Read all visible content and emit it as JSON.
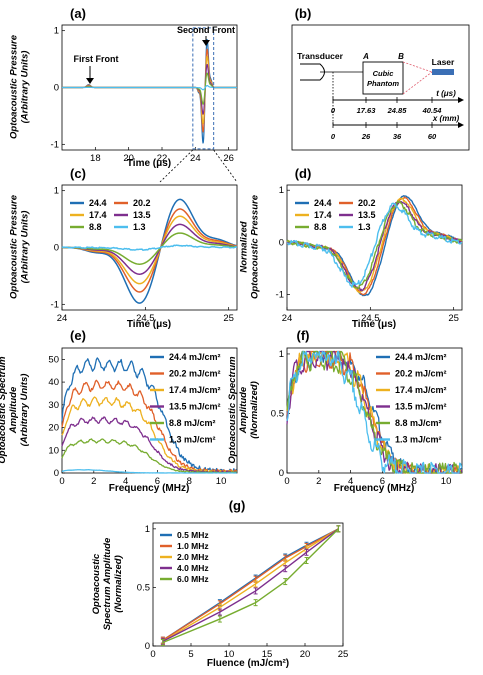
{
  "colors": [
    "#1f6fb4",
    "#e0602a",
    "#edb120",
    "#7e2f8e",
    "#77ac30",
    "#4dbeee"
  ],
  "panel_labels": [
    "(a)",
    "(b)",
    "(c)",
    "(d)",
    "(e)",
    "(f)",
    "(g)"
  ],
  "fluence_labels": [
    "24.4",
    "20.2",
    "17.4",
    "13.5",
    "8.8",
    "1.3"
  ],
  "fluence_labels_units": [
    "24.4 mJ/cm²",
    "20.2 mJ/cm²",
    "17.4 mJ/cm²",
    "13.5 mJ/cm²",
    "8.8 mJ/cm²",
    "1.3 mJ/cm²"
  ],
  "chart_data": [
    {
      "id": "a",
      "type": "line",
      "ylabel_top": "Optoacoustic Pressure",
      "ylabel_bottom": "(Arbitrary Units)",
      "xlabel": "Time (μs)",
      "xlim": [
        16,
        26.5
      ],
      "ylim": [
        -1.1,
        1.1
      ],
      "xticks": [
        18,
        20,
        22,
        24,
        26
      ],
      "yticks": [
        -1,
        0,
        1
      ],
      "annotations": [
        "First Front",
        "Second Front"
      ]
    },
    {
      "id": "b",
      "type": "diagram",
      "labels": {
        "transducer": "Transducer",
        "phantom_line1": "Cubic",
        "phantom_line2": "Phantom",
        "laser": "Laser",
        "a": "A",
        "b": "B",
        "t_axis": "t (μs)",
        "x_axis": "x (mm)"
      },
      "t_ticks": [
        "0",
        "17.63",
        "24.85",
        "40.54"
      ],
      "x_ticks": [
        "0",
        "26",
        "36",
        "60"
      ]
    },
    {
      "id": "c",
      "type": "line",
      "ylabel_top": "Optoacoustic Pressure",
      "ylabel_bottom": "(Arbitrary Units)",
      "xlabel": "Time (μs)",
      "xlim": [
        24,
        25.05
      ],
      "ylim": [
        -1.1,
        1.1
      ],
      "xticks": [
        24,
        24.5,
        25
      ],
      "yticks": [
        -1,
        0,
        1
      ],
      "series": [
        {
          "name": "24.4",
          "scale": 1.0
        },
        {
          "name": "20.2",
          "scale": 0.8
        },
        {
          "name": "17.4",
          "scale": 0.65
        },
        {
          "name": "13.5",
          "scale": 0.48
        },
        {
          "name": "8.8",
          "scale": 0.3
        },
        {
          "name": "1.3",
          "scale": 0.04
        }
      ]
    },
    {
      "id": "d",
      "type": "line",
      "ylabel_top": "Normalized",
      "ylabel_bottom": "Optoacoustic Pressure",
      "xlabel": "Time (μs)",
      "xlim": [
        24,
        25.05
      ],
      "ylim": [
        -1.3,
        1.1
      ],
      "xticks": [
        24,
        24.5,
        25
      ],
      "yticks": [
        -1,
        0,
        1
      ],
      "series": [
        {
          "name": "24.4",
          "shift": 0.0
        },
        {
          "name": "20.2",
          "shift": -0.01
        },
        {
          "name": "17.4",
          "shift": -0.02
        },
        {
          "name": "13.5",
          "shift": -0.03
        },
        {
          "name": "8.8",
          "shift": -0.04
        },
        {
          "name": "1.3",
          "shift": -0.06
        }
      ]
    },
    {
      "id": "e",
      "type": "line",
      "ylabel_top": "Optoacoustic Spectrum",
      "ylabel_mid": "Amplitude",
      "ylabel_bottom": "(Arbitrary Units)",
      "xlabel": "Frequency (MHz)",
      "xlim": [
        0,
        11
      ],
      "ylim": [
        0,
        55
      ],
      "xticks": [
        0,
        2,
        4,
        6,
        8,
        10
      ],
      "yticks": [
        0,
        10,
        20,
        30,
        40,
        50
      ],
      "series": [
        {
          "name": "24.4 mJ/cm²",
          "peak": 47,
          "cutoff": 7.3
        },
        {
          "name": "20.2 mJ/cm²",
          "peak": 38,
          "cutoff": 7.0
        },
        {
          "name": "17.4 mJ/cm²",
          "peak": 31,
          "cutoff": 6.8
        },
        {
          "name": "13.5 mJ/cm²",
          "peak": 23,
          "cutoff": 6.6
        },
        {
          "name": "8.8 mJ/cm²",
          "peak": 14,
          "cutoff": 6.4
        },
        {
          "name": "1.3 mJ/cm²",
          "peak": 1.5,
          "cutoff": 4.0
        }
      ]
    },
    {
      "id": "f",
      "type": "line",
      "ylabel_top": "Optoacoustic Spectrum",
      "ylabel_mid": "Amplitude",
      "ylabel_bottom": "(Normalized)",
      "xlabel": "Frequency (MHz)",
      "xlim": [
        0,
        11
      ],
      "ylim": [
        0,
        1.05
      ],
      "xticks": [
        0,
        2,
        4,
        6,
        8,
        10
      ],
      "yticks": [
        0,
        0.5,
        1
      ],
      "series": [
        {
          "name": "24.4 mJ/cm²",
          "cutoff": 6.4
        },
        {
          "name": "20.2 mJ/cm²",
          "cutoff": 6.2
        },
        {
          "name": "17.4 mJ/cm²",
          "cutoff": 6.1
        },
        {
          "name": "13.5 mJ/cm²",
          "cutoff": 6.0
        },
        {
          "name": "8.8 mJ/cm²",
          "cutoff": 5.9
        },
        {
          "name": "1.3 mJ/cm²",
          "cutoff": 5.6
        }
      ]
    },
    {
      "id": "g",
      "type": "line",
      "ylabel_top": "Optoacoustic",
      "ylabel_mid": "Spectrum Amplitude",
      "ylabel_bottom": "(Normalized)",
      "xlabel": "Fluence (mJ/cm²)",
      "xlim": [
        0,
        25
      ],
      "ylim": [
        0,
        1.05
      ],
      "xticks": [
        0,
        5,
        10,
        15,
        20,
        25
      ],
      "yticks": [
        0,
        0.5,
        1
      ],
      "x": [
        1.3,
        8.8,
        13.5,
        17.4,
        20.2,
        24.4
      ],
      "series": [
        {
          "name": "0.5 MHz",
          "values": [
            0.05,
            0.37,
            0.58,
            0.76,
            0.86,
            1.0
          ]
        },
        {
          "name": "1.0 MHz",
          "values": [
            0.05,
            0.36,
            0.57,
            0.75,
            0.85,
            1.0
          ]
        },
        {
          "name": "2.0 MHz",
          "values": [
            0.04,
            0.33,
            0.53,
            0.71,
            0.83,
            1.0
          ]
        },
        {
          "name": "4.0 MHz",
          "values": [
            0.04,
            0.29,
            0.47,
            0.66,
            0.8,
            1.0
          ]
        },
        {
          "name": "6.0 MHz",
          "values": [
            0.03,
            0.23,
            0.37,
            0.55,
            0.73,
            1.0
          ]
        }
      ]
    }
  ]
}
